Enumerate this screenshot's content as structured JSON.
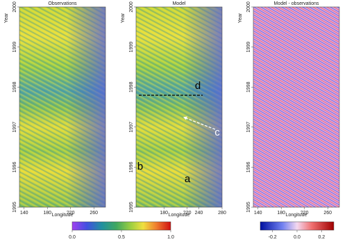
{
  "chart_data": [
    {
      "type": "heatmap",
      "title": "Observations",
      "xlabel": "Longitude",
      "ylabel": "Year",
      "xlim": [
        132,
        280
      ],
      "xticks": [
        140,
        180,
        220,
        260
      ],
      "ylim": [
        1995,
        2000
      ],
      "yticks": [
        1995,
        1996,
        1997,
        1998,
        1999,
        2000
      ],
      "colorbar": {
        "lim": [
          0,
          1
        ],
        "ticks": [
          {
            "value": 0,
            "label": "0.0"
          },
          0.5,
          {
            "value": 1,
            "label": "1.0"
          }
        ]
      }
    },
    {
      "type": "heatmap",
      "title": "Model",
      "xlabel": "Longitude",
      "ylabel": "Year",
      "xlim": [
        132,
        280
      ],
      "xticks": [
        180,
        220,
        240,
        280
      ],
      "ylim": [
        1995,
        2000
      ],
      "yticks": [
        1995,
        1996,
        1997,
        1998,
        1999,
        2000
      ],
      "annotations": [
        "d",
        "c",
        "b",
        "a"
      ]
    },
    {
      "type": "heatmap",
      "title": "Model - observations",
      "xlabel": "Longitude",
      "ylabel": "Year",
      "xlim": [
        132,
        280
      ],
      "xticks": [
        140,
        180,
        220,
        260
      ],
      "ylim": [
        1995,
        2000
      ],
      "yticks": [
        1995,
        1996,
        1997,
        1998,
        1999,
        2000
      ],
      "colorbar": {
        "lim": [
          -0.3,
          0.3
        ],
        "ticks": [
          -0.2,
          {
            "value": 0,
            "label": "0.0"
          },
          0.2
        ]
      }
    }
  ]
}
